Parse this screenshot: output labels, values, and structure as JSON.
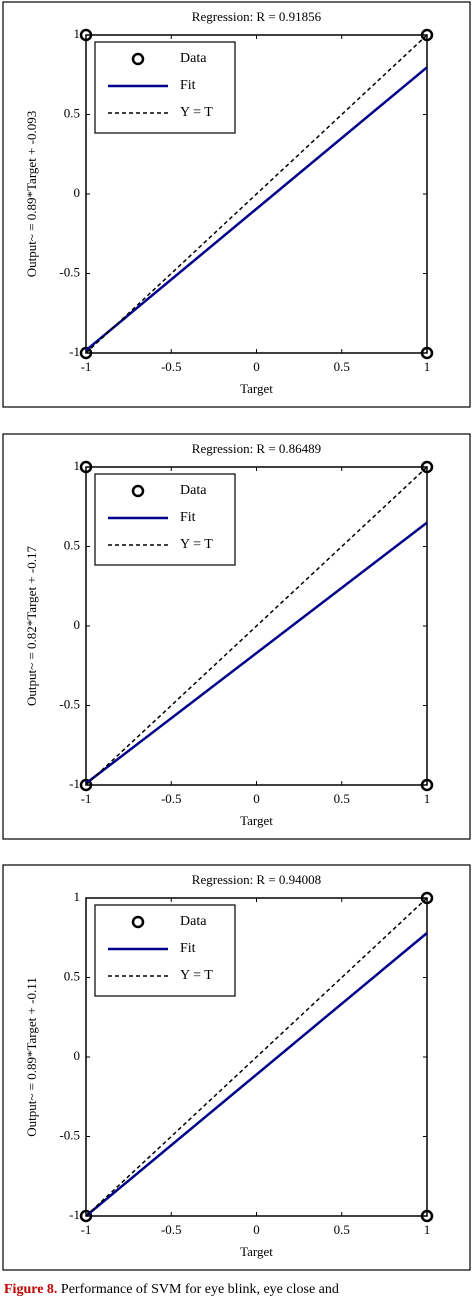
{
  "chart_data": [
    {
      "type": "line",
      "title": "Regression: R = 0.91856",
      "xlabel": "Target",
      "ylabel": "Output~ = 0.89*Target + -0.093",
      "xlim": [
        -1,
        1
      ],
      "ylim": [
        -1,
        1
      ],
      "xticks": [
        -1,
        -0.5,
        0,
        0.5,
        1
      ],
      "yticks": [
        -1,
        -0.5,
        0,
        0.5,
        1
      ],
      "series": [
        {
          "name": "Data",
          "type": "scatter",
          "color": "#000000",
          "x": [
            -1,
            1,
            -1,
            1
          ],
          "values": [
            -1,
            1,
            1,
            -1
          ]
        },
        {
          "name": "Fit",
          "type": "line",
          "color": "#00008b",
          "x": [
            -1,
            1
          ],
          "values": [
            -0.983,
            0.797
          ]
        },
        {
          "name": "Y = T",
          "type": "line",
          "dashed": true,
          "color": "#000000",
          "x": [
            -1,
            1
          ],
          "values": [
            -1,
            1
          ]
        }
      ]
    },
    {
      "type": "line",
      "title": "Regression: R = 0.86489",
      "xlabel": "Target",
      "ylabel": "Output~ = 0.82*Target + -0.17",
      "xlim": [
        -1,
        1
      ],
      "ylim": [
        -1,
        1
      ],
      "xticks": [
        -1,
        -0.5,
        0,
        0.5,
        1
      ],
      "yticks": [
        -1,
        -0.5,
        0,
        0.5,
        1
      ],
      "series": [
        {
          "name": "Data",
          "type": "scatter",
          "color": "#000000",
          "x": [
            -1,
            1,
            -1,
            1
          ],
          "values": [
            -1,
            1,
            1,
            -1
          ]
        },
        {
          "name": "Fit",
          "type": "line",
          "color": "#00008b",
          "x": [
            -1,
            1
          ],
          "values": [
            -0.99,
            0.65
          ]
        },
        {
          "name": "Y = T",
          "type": "line",
          "dashed": true,
          "color": "#000000",
          "x": [
            -1,
            1
          ],
          "values": [
            -1,
            1
          ]
        }
      ]
    },
    {
      "type": "line",
      "title": "Regression: R = 0.94008",
      "xlabel": "Target",
      "ylabel": "Output~ = 0.89*Target + -0.11",
      "xlim": [
        -1,
        1
      ],
      "ylim": [
        -1,
        1
      ],
      "xticks": [
        -1,
        -0.5,
        0,
        0.5,
        1
      ],
      "yticks": [
        -1,
        -0.5,
        0,
        0.5,
        1
      ],
      "series": [
        {
          "name": "Data",
          "type": "scatter",
          "color": "#000000",
          "x": [
            -1,
            1,
            1
          ],
          "values": [
            -1,
            1,
            -1
          ]
        },
        {
          "name": "Fit",
          "type": "line",
          "color": "#00008b",
          "x": [
            -1,
            1
          ],
          "values": [
            -1.0,
            0.78
          ]
        },
        {
          "name": "Y = T",
          "type": "line",
          "dashed": true,
          "color": "#000000",
          "x": [
            -1,
            1
          ],
          "values": [
            -1,
            1
          ]
        }
      ]
    }
  ],
  "caption": {
    "label": "Figure 8.",
    "text": "Performance of SVM for eye blink, eye close and"
  }
}
